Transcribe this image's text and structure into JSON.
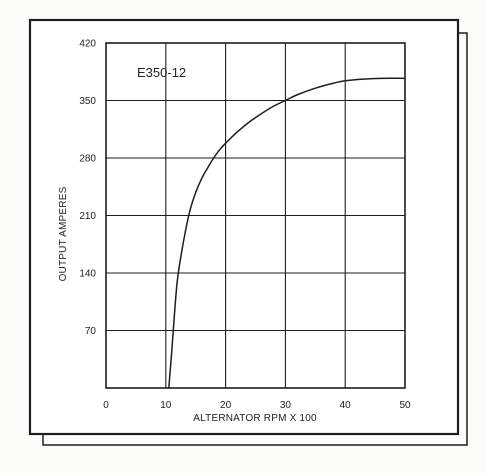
{
  "chart_data": {
    "type": "line",
    "title": "E350-12",
    "xlabel": "ALTERNATOR RPM X 100",
    "ylabel": "OUTPUT AMPERES",
    "xlim": [
      0,
      50
    ],
    "ylim": [
      0,
      420
    ],
    "x_ticks": [
      0,
      10,
      20,
      30,
      40,
      50
    ],
    "y_ticks": [
      70,
      140,
      210,
      280,
      350,
      420
    ],
    "grid": true,
    "series": [
      {
        "x": [
          10.5,
          11,
          11.5,
          12,
          13,
          14,
          15,
          16,
          17,
          18,
          19,
          20,
          22,
          24,
          26,
          28,
          30,
          32,
          35,
          38,
          40,
          43,
          46,
          50
        ],
        "y": [
          0,
          45,
          95,
          135,
          180,
          215,
          238,
          255,
          268,
          280,
          290,
          298,
          312,
          324,
          334,
          343,
          350,
          357,
          365,
          371,
          374,
          376,
          377,
          377
        ]
      }
    ]
  },
  "colors": {
    "ink": "#1e1e1e",
    "paper": "#ffffff"
  }
}
